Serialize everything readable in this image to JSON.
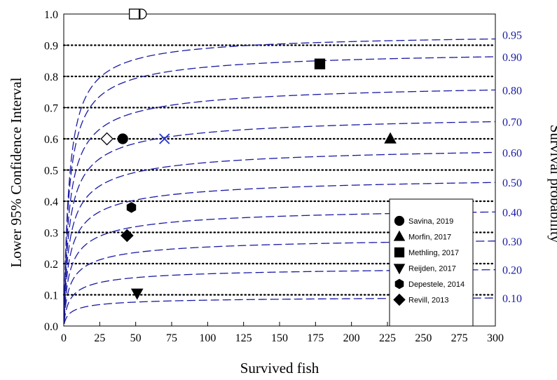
{
  "chart_data": {
    "type": "scatter",
    "xlabel": "Survived fish",
    "ylabel": "Lower 95% Confidence Interval",
    "y2label": "Survival probability",
    "xlim": [
      0,
      300
    ],
    "ylim": [
      0,
      1.0
    ],
    "x_ticks": [
      "0",
      "25",
      "50",
      "75",
      "100",
      "125",
      "150",
      "175",
      "200",
      "225",
      "250",
      "275",
      "300"
    ],
    "y_ticks": [
      "0.0",
      "0.1",
      "0.2",
      "0.3",
      "0.4",
      "0.5",
      "0.6",
      "0.7",
      "0.8",
      "0.9",
      "1.0"
    ],
    "grid": "horizontal dotted at each 0.1",
    "curve_labels": [
      "0.95",
      "0.90",
      "0.80",
      "0.70",
      "0.60",
      "0.50",
      "0.40",
      "0.30",
      "0.20",
      "0.10"
    ],
    "curve_probabilities": [
      0.95,
      0.9,
      0.8,
      0.7,
      0.6,
      0.5,
      0.4,
      0.3,
      0.2,
      0.1
    ],
    "legend_position": "bottom-right",
    "legend": [
      {
        "name": "Savina, 2019",
        "marker": "circle"
      },
      {
        "name": "Morfin, 2017",
        "marker": "triangle-up"
      },
      {
        "name": "Methling, 2017",
        "marker": "square"
      },
      {
        "name": "Reijden, 2017",
        "marker": "triangle-down"
      },
      {
        "name": "Depestele, 2014",
        "marker": "hexagon"
      },
      {
        "name": "Revill, 2013",
        "marker": "diamond"
      }
    ],
    "points": [
      {
        "marker": "square-open",
        "x": 49,
        "y": 1.0
      },
      {
        "marker": "half-circle-open",
        "x": 54,
        "y": 1.0
      },
      {
        "marker": "diamond-open",
        "x": 30,
        "y": 0.6
      },
      {
        "marker": "circle",
        "x": 41,
        "y": 0.6
      },
      {
        "marker": "x-blue",
        "x": 70,
        "y": 0.6
      },
      {
        "marker": "triangle-up",
        "x": 227,
        "y": 0.6
      },
      {
        "marker": "square",
        "x": 178,
        "y": 0.84
      },
      {
        "marker": "hexagon",
        "x": 47,
        "y": 0.38
      },
      {
        "marker": "diamond",
        "x": 44,
        "y": 0.29
      },
      {
        "marker": "triangle-down",
        "x": 51,
        "y": 0.105
      }
    ],
    "colors": {
      "curves": "#1a1aa6",
      "right_axis": "#1a1aa6",
      "markers": "#000000",
      "x_marker": "#2233cc"
    }
  }
}
